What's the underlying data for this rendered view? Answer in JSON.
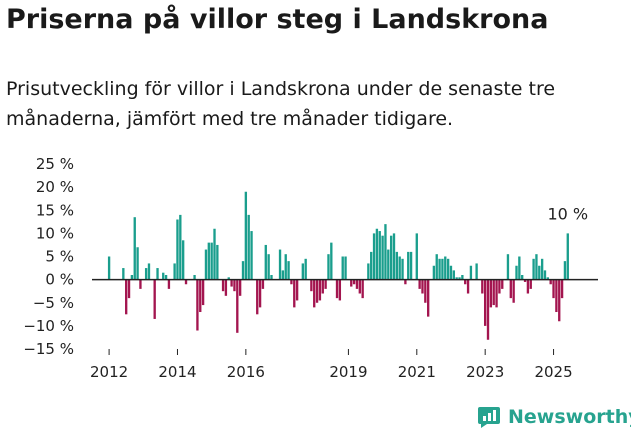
{
  "title": "Priserna på villor steg i Landskrona",
  "subtitle": "Prisutveckling för villor i Landskrona under de senaste tre månaderna, jämfört med tre månader tidigare.",
  "brand": "Newsworthy",
  "colors": {
    "positive": "#1a9e8d",
    "negative": "#a3154f",
    "axis": "#222222",
    "brand": "#27a38f"
  },
  "chart_data": {
    "type": "bar",
    "xlabel": "",
    "ylabel": "",
    "ylim": [
      -15,
      25
    ],
    "x_start": 2012.0,
    "x_step": 0.08333,
    "x_ticks": [
      "2012",
      "2014",
      "2016",
      "2019",
      "2021",
      "2023",
      "2025"
    ],
    "y_ticks": [
      "25 %",
      "20 %",
      "15 %",
      "10 %",
      "5 %",
      "0 %",
      "−5 %",
      "−10 %",
      "−15 %"
    ],
    "annotation": "10 %",
    "values": [
      5,
      0,
      0,
      0,
      0,
      2.5,
      -7.5,
      -4,
      1,
      13.5,
      7,
      -2,
      0,
      2.5,
      3.5,
      0,
      -8.5,
      2.5,
      0,
      1.5,
      1,
      -2,
      0,
      3.5,
      13,
      14,
      8.5,
      -1,
      0,
      0,
      1,
      -11,
      -7,
      -5.5,
      6.5,
      8,
      8,
      11,
      7.5,
      0,
      -2.5,
      -3.5,
      0.5,
      -1.5,
      -2.5,
      -11.5,
      -3.5,
      4,
      19,
      14,
      10.5,
      0,
      -7.5,
      -6,
      -2,
      7.5,
      5.5,
      1,
      0,
      0,
      6.5,
      2,
      5.5,
      4,
      -1,
      -6,
      -4.5,
      0,
      3.5,
      4.5,
      0,
      -2.5,
      -6,
      -5,
      -4.5,
      -3,
      -2,
      5.5,
      8,
      0,
      -4,
      -4.5,
      5,
      5,
      0,
      -1.5,
      -1,
      -2,
      -3,
      -4,
      0,
      3.5,
      6,
      10,
      11,
      10.5,
      9.5,
      12,
      6.5,
      9.5,
      10,
      6,
      5,
      4.5,
      -1,
      6,
      6,
      0,
      10,
      -2,
      -3,
      -5,
      -8,
      0,
      3,
      5.5,
      4.5,
      4.5,
      5,
      4.5,
      3,
      2,
      0.5,
      0.5,
      1,
      -1,
      -3,
      3,
      0,
      3.5,
      0,
      -3,
      -10,
      -13,
      -6,
      -5.5,
      -6,
      -3,
      -2,
      0,
      5.5,
      -4,
      -5,
      3,
      5,
      1,
      -0.5,
      -3,
      -2,
      4.5,
      5.5,
      3,
      4.5,
      2,
      0.5,
      -1,
      -4,
      -7,
      -9,
      -4,
      4,
      10
    ]
  }
}
